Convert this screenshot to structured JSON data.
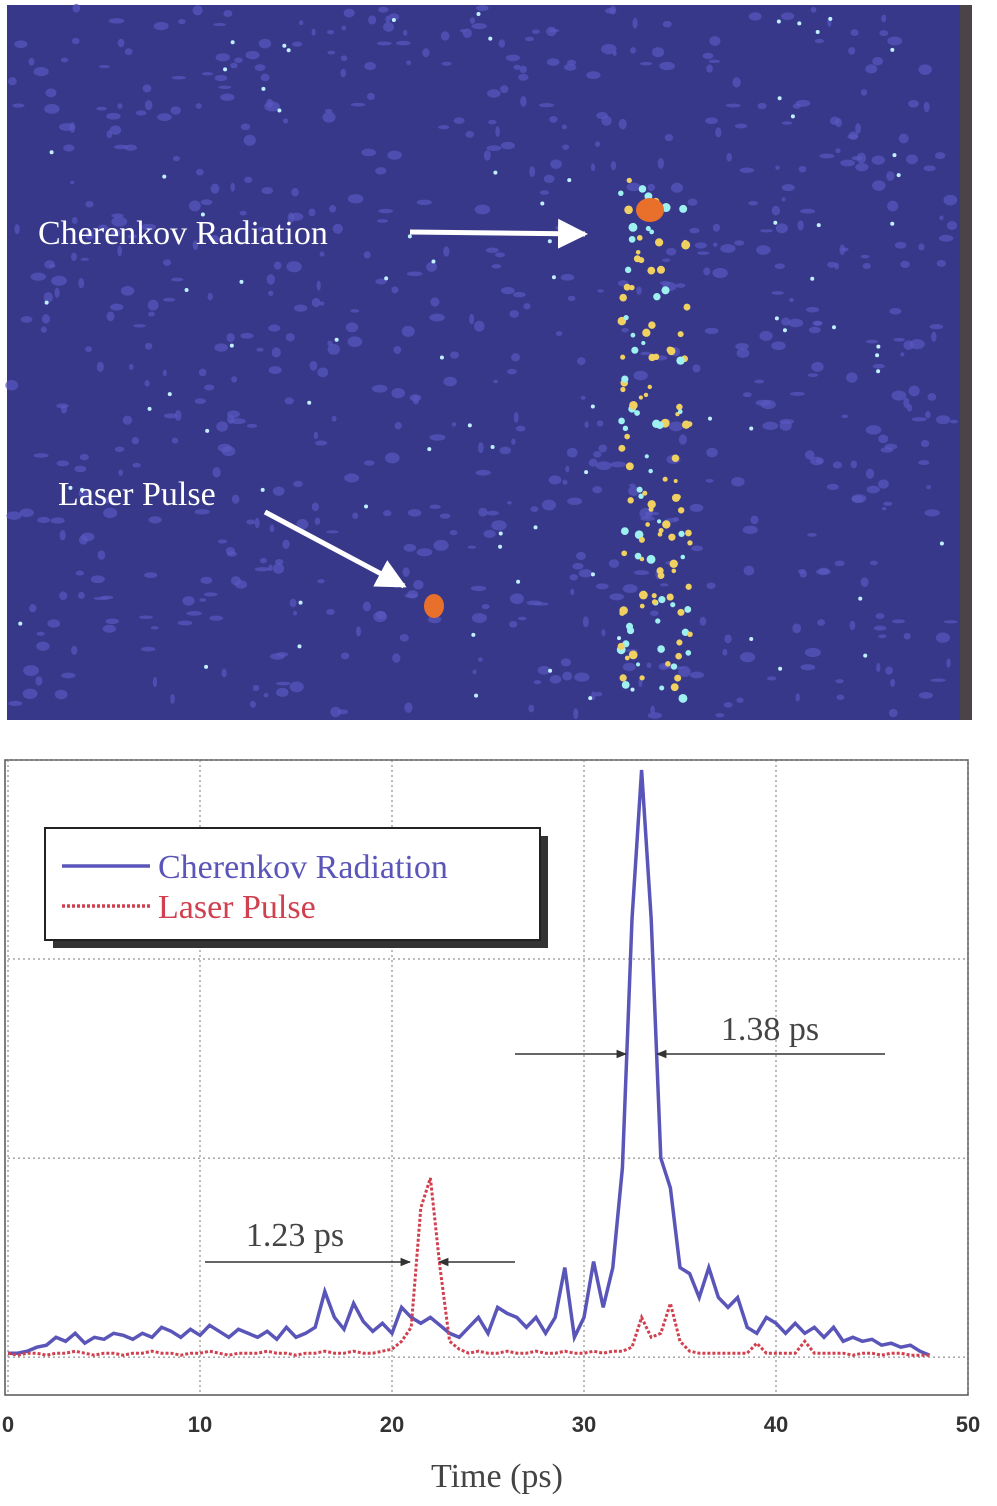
{
  "image_labels": [
    "Cherenkov Radiation",
    "Laser Pulse"
  ],
  "chart_data": {
    "type": "line",
    "xlabel": "Time (ps)",
    "annotations": [
      "1.38 ps",
      "1.23 ps"
    ],
    "x": [
      0,
      0.5,
      1,
      1.5,
      2,
      2.5,
      3,
      3.5,
      4,
      4.5,
      5,
      5.5,
      6,
      6.5,
      7,
      7.5,
      8,
      8.5,
      9,
      9.5,
      10,
      10.5,
      11,
      11.5,
      12,
      12.5,
      13,
      13.5,
      14,
      14.5,
      15,
      15.5,
      16,
      16.5,
      17,
      17.5,
      18,
      18.5,
      19,
      19.5,
      20,
      20.5,
      21,
      21.5,
      22,
      22.5,
      23,
      23.5,
      24,
      24.5,
      25,
      25.5,
      26,
      26.5,
      27,
      27.5,
      28,
      28.5,
      29,
      29.5,
      30,
      30.5,
      31,
      31.5,
      32,
      32.5,
      33,
      33.5,
      34,
      34.5,
      35,
      35.5,
      36,
      36.5,
      37,
      37.5,
      38,
      38.5,
      39,
      39.5,
      40,
      40.5,
      41,
      41.5,
      42,
      42.5,
      43,
      43.5,
      44,
      44.5,
      45,
      45.5,
      46,
      46.5,
      47,
      47.5,
      48
    ],
    "series": [
      {
        "name": "Cherenkov Radiation",
        "color": "#5a55b8",
        "dash": false,
        "values": [
          0.02,
          0.02,
          0.03,
          0.05,
          0.06,
          0.1,
          0.08,
          0.12,
          0.07,
          0.1,
          0.09,
          0.12,
          0.11,
          0.09,
          0.12,
          0.1,
          0.15,
          0.13,
          0.1,
          0.14,
          0.11,
          0.16,
          0.13,
          0.1,
          0.14,
          0.12,
          0.1,
          0.13,
          0.09,
          0.15,
          0.1,
          0.12,
          0.15,
          0.33,
          0.2,
          0.14,
          0.27,
          0.18,
          0.13,
          0.17,
          0.12,
          0.25,
          0.2,
          0.17,
          0.2,
          0.16,
          0.12,
          0.1,
          0.15,
          0.2,
          0.12,
          0.25,
          0.22,
          0.2,
          0.15,
          0.2,
          0.12,
          0.2,
          0.45,
          0.1,
          0.2,
          0.48,
          0.25,
          0.45,
          0.95,
          2.2,
          2.95,
          2.2,
          1.0,
          0.85,
          0.45,
          0.42,
          0.3,
          0.45,
          0.3,
          0.25,
          0.3,
          0.15,
          0.12,
          0.2,
          0.17,
          0.12,
          0.17,
          0.12,
          0.15,
          0.1,
          0.15,
          0.08,
          0.1,
          0.08,
          0.09,
          0.06,
          0.07,
          0.05,
          0.06,
          0.03,
          0.01
        ]
      },
      {
        "name": "Laser Pulse",
        "color": "#d0404e",
        "dash": true,
        "values": [
          0.02,
          0.01,
          0.02,
          0.02,
          0.01,
          0.02,
          0.02,
          0.03,
          0.02,
          0.01,
          0.02,
          0.02,
          0.01,
          0.02,
          0.02,
          0.03,
          0.02,
          0.02,
          0.01,
          0.02,
          0.02,
          0.03,
          0.02,
          0.01,
          0.02,
          0.02,
          0.02,
          0.03,
          0.02,
          0.02,
          0.01,
          0.02,
          0.02,
          0.03,
          0.02,
          0.02,
          0.03,
          0.02,
          0.02,
          0.03,
          0.04,
          0.08,
          0.15,
          0.75,
          0.9,
          0.45,
          0.08,
          0.04,
          0.02,
          0.03,
          0.02,
          0.02,
          0.03,
          0.02,
          0.02,
          0.03,
          0.02,
          0.02,
          0.03,
          0.02,
          0.02,
          0.03,
          0.02,
          0.03,
          0.03,
          0.05,
          0.2,
          0.1,
          0.12,
          0.27,
          0.08,
          0.03,
          0.02,
          0.02,
          0.02,
          0.02,
          0.02,
          0.02,
          0.07,
          0.02,
          0.02,
          0.02,
          0.02,
          0.08,
          0.02,
          0.02,
          0.02,
          0.02,
          0.01,
          0.02,
          0.02,
          0.01,
          0.02,
          0.02,
          0.01,
          0.01,
          0.01
        ]
      }
    ],
    "xlim": [
      0,
      50
    ],
    "xticks": [
      0,
      10,
      20,
      30,
      40,
      50
    ],
    "ylim": [
      -0.19,
      3
    ],
    "yticks": [
      0,
      1,
      2,
      3
    ],
    "grid": true,
    "legend": "upper left"
  }
}
